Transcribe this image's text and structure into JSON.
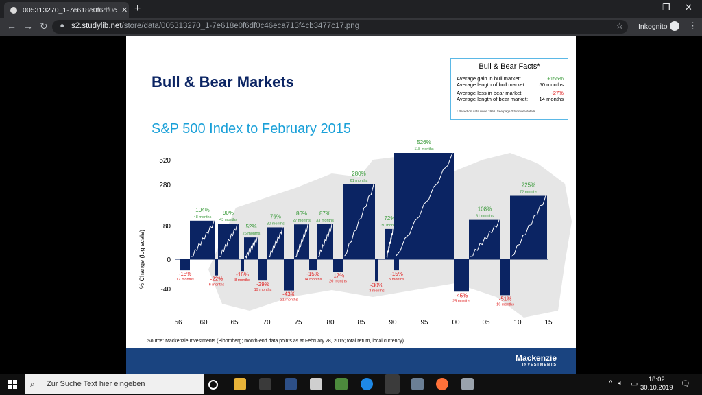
{
  "browser": {
    "tab_title": "005313270_1-7e618e0f6df0c46e...",
    "url_host": "s2.studylib.net",
    "url_path": "/store/data/005313270_1-7e618e0f6df0c46eca713f4cb3477c17.png",
    "incognito_label": "Inkognito"
  },
  "slide": {
    "title": "Bull & Bear Markets",
    "subtitle": "S&P 500 Index to February 2015",
    "facts": {
      "heading": "Bull & Bear Facts*",
      "rows": [
        {
          "label": "Average gain in bull market:",
          "value": "+155%"
        },
        {
          "label": "Average length of bull market:",
          "value": "50 months"
        },
        {
          "label": "Average loss in bear market:",
          "value": "-27%"
        },
        {
          "label": "Average length of bear market:",
          "value": "14 months"
        }
      ],
      "note": "* Based on data since 1956. See page 2 for more details."
    },
    "source": "Source: Mackenzie Investments (Bloomberg; month-end data points as at February 28, 2015; total return, local currency)",
    "brand": "Mackenzie",
    "brand_sub": "INVESTMENTS"
  },
  "chart_data": {
    "type": "bar",
    "title": "S&P 500 Index to February 2015",
    "ylabel": "% Change (log scale)",
    "y_ticks": [
      "520",
      "280",
      "80",
      "0",
      "-40"
    ],
    "x_ticks": [
      "56",
      "60",
      "65",
      "70",
      "75",
      "80",
      "85",
      "90",
      "95",
      "00",
      "05",
      "10",
      "15"
    ],
    "colors": {
      "bull": "#0b2463",
      "bear": "#0b2463",
      "gain_text": "#3a9a3a",
      "loss_text": "#e02020"
    },
    "bull_markets": [
      {
        "gain": "104%",
        "months": "48 months",
        "value": 104
      },
      {
        "gain": "90%",
        "months": "43 months",
        "value": 90
      },
      {
        "gain": "52%",
        "months": "26 months",
        "value": 52
      },
      {
        "gain": "76%",
        "months": "30 months",
        "value": 76
      },
      {
        "gain": "86%",
        "months": "27 months",
        "value": 86
      },
      {
        "gain": "87%",
        "months": "33 months",
        "value": 87
      },
      {
        "gain": "280%",
        "months": "61 months",
        "value": 280
      },
      {
        "gain": "72%",
        "months": "30 months",
        "value": 72
      },
      {
        "gain": "526%",
        "months": "118 months",
        "value": 526
      },
      {
        "gain": "108%",
        "months": "61 months",
        "value": 108
      },
      {
        "gain": "225%",
        "months": "72 months",
        "value": 225
      }
    ],
    "bear_markets": [
      {
        "loss": "-15%",
        "months": "17 months",
        "value": -15
      },
      {
        "loss": "-22%",
        "months": "6 months",
        "value": -22
      },
      {
        "loss": "-16%",
        "months": "8 months",
        "value": -16
      },
      {
        "loss": "-29%",
        "months": "19 months",
        "value": -29
      },
      {
        "loss": "-43%",
        "months": "21 months",
        "value": -43
      },
      {
        "loss": "-15%",
        "months": "14 months",
        "value": -15
      },
      {
        "loss": "-17%",
        "months": "20 months",
        "value": -17
      },
      {
        "loss": "-30%",
        "months": "3 months",
        "value": -30
      },
      {
        "loss": "-15%",
        "months": "5 months",
        "value": -15
      },
      {
        "loss": "-45%",
        "months": "25 months",
        "value": -45
      },
      {
        "loss": "-51%",
        "months": "16 months",
        "value": -51
      }
    ]
  },
  "taskbar": {
    "search_placeholder": "Zur Suche Text hier eingeben",
    "time": "18:02",
    "date": "30.10.2019"
  }
}
